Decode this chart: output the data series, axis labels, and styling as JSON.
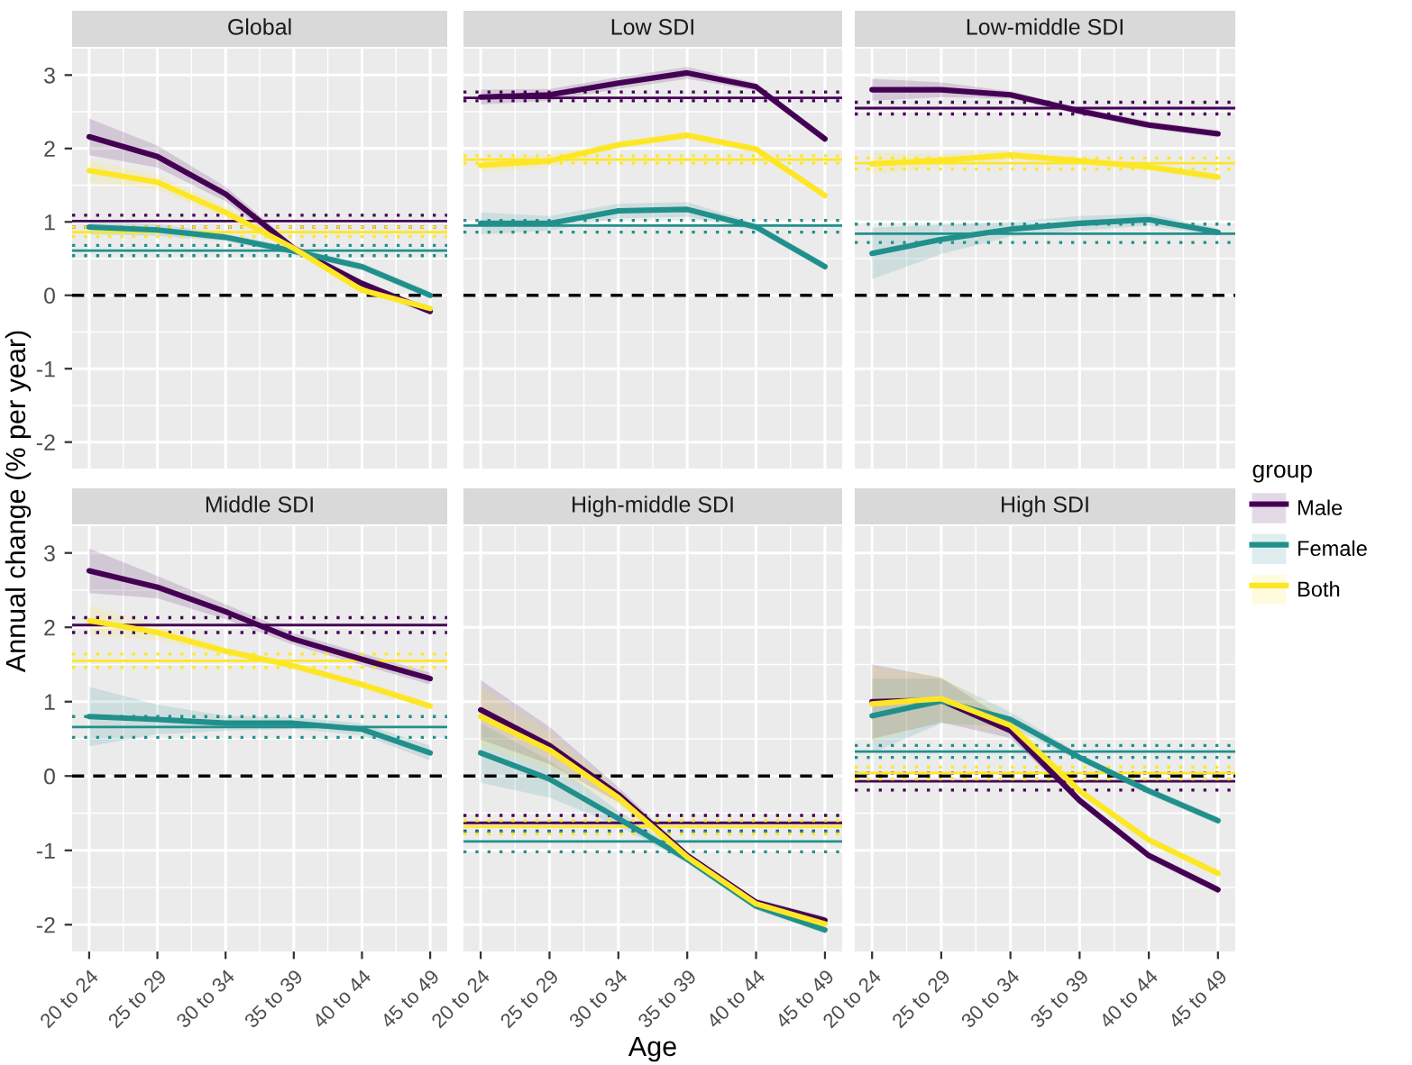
{
  "chart_data": [
    {
      "type": "line",
      "title": "Global",
      "ylabel": "Annual change (% per year)",
      "legend": "right",
      "legend_title": "group",
      "grid": true,
      "tick_labels": "y",
      "categories": [
        "20 to 24",
        "25 to 29",
        "30 to 34",
        "35 to 39",
        "40 to 44",
        "45 to 49"
      ],
      "ylim": [
        -2.36,
        3.36
      ],
      "yticks": [
        -2,
        -1,
        0,
        1,
        2,
        3
      ],
      "series": [
        {
          "name": "Male",
          "color": "#440154",
          "values": [
            2.16,
            1.89,
            1.38,
            0.64,
            0.16,
            -0.22
          ],
          "lower": [
            1.91,
            1.74,
            1.28,
            0.59,
            0.11,
            -0.27
          ],
          "upper": [
            2.41,
            2.04,
            1.48,
            0.69,
            0.21,
            -0.17
          ]
        },
        {
          "name": "Female",
          "color": "#21908c",
          "values": [
            0.93,
            0.89,
            0.79,
            0.6,
            0.39,
            0.0
          ],
          "lower": [
            0.83,
            0.81,
            0.74,
            0.55,
            0.34,
            -0.05
          ],
          "upper": [
            1.03,
            0.97,
            0.84,
            0.65,
            0.44,
            0.05
          ]
        },
        {
          "name": "Both",
          "color": "#fde725",
          "values": [
            1.7,
            1.54,
            1.13,
            0.64,
            0.07,
            -0.18
          ],
          "lower": [
            1.55,
            1.44,
            1.05,
            0.59,
            0.02,
            -0.23
          ],
          "upper": [
            1.85,
            1.64,
            1.21,
            0.69,
            0.12,
            -0.13
          ]
        }
      ],
      "ref_lines": [
        {
          "axis": "y",
          "value": 0,
          "color": "#000000",
          "line_style": "dashed"
        },
        {
          "axis": "y",
          "value": 1.01,
          "color": "#440154",
          "line_style": "solid"
        },
        {
          "axis": "y",
          "value": 1.09,
          "color": "#440154",
          "line_style": "dotted"
        },
        {
          "axis": "y",
          "value": 0.93,
          "color": "#440154",
          "line_style": "dotted"
        },
        {
          "axis": "y",
          "value": 0.61,
          "color": "#21908c",
          "line_style": "solid"
        },
        {
          "axis": "y",
          "value": 0.68,
          "color": "#21908c",
          "line_style": "dotted"
        },
        {
          "axis": "y",
          "value": 0.54,
          "color": "#21908c",
          "line_style": "dotted"
        },
        {
          "axis": "y",
          "value": 0.86,
          "color": "#fde725",
          "line_style": "solid"
        },
        {
          "axis": "y",
          "value": 0.93,
          "color": "#fde725",
          "line_style": "dotted"
        },
        {
          "axis": "y",
          "value": 0.8,
          "color": "#fde725",
          "line_style": "dotted"
        }
      ]
    },
    {
      "type": "line",
      "title": "Low SDI",
      "grid": true,
      "tick_labels": false,
      "categories": [
        "20 to 24",
        "25 to 29",
        "30 to 34",
        "35 to 39",
        "40 to 44",
        "45 to 49"
      ],
      "ylim": [
        -2.36,
        3.36
      ],
      "yticks": [
        -2,
        -1,
        0,
        1,
        2,
        3
      ],
      "series": [
        {
          "name": "Male",
          "color": "#440154",
          "values": [
            2.7,
            2.73,
            2.89,
            3.03,
            2.84,
            2.13
          ],
          "lower": [
            2.6,
            2.65,
            2.81,
            2.95,
            2.79,
            2.08
          ],
          "upper": [
            2.8,
            2.81,
            2.97,
            3.11,
            2.89,
            2.18
          ]
        },
        {
          "name": "Female",
          "color": "#21908c",
          "values": [
            0.98,
            0.98,
            1.15,
            1.17,
            0.93,
            0.39
          ],
          "lower": [
            0.83,
            0.88,
            1.05,
            1.07,
            0.88,
            0.34
          ],
          "upper": [
            1.13,
            1.08,
            1.25,
            1.27,
            0.98,
            0.44
          ]
        },
        {
          "name": "Both",
          "color": "#fde725",
          "values": [
            1.77,
            1.83,
            2.05,
            2.18,
            1.99,
            1.36
          ],
          "lower": [
            1.67,
            1.75,
            2.0,
            2.13,
            1.94,
            1.31
          ],
          "upper": [
            1.87,
            1.91,
            2.1,
            2.23,
            2.04,
            1.41
          ]
        }
      ],
      "ref_lines": [
        {
          "axis": "y",
          "value": 0,
          "color": "#000000",
          "line_style": "dashed"
        },
        {
          "axis": "y",
          "value": 2.69,
          "color": "#440154",
          "line_style": "solid"
        },
        {
          "axis": "y",
          "value": 2.77,
          "color": "#440154",
          "line_style": "dotted"
        },
        {
          "axis": "y",
          "value": 2.65,
          "color": "#440154",
          "line_style": "dotted"
        },
        {
          "axis": "y",
          "value": 0.95,
          "color": "#21908c",
          "line_style": "solid"
        },
        {
          "axis": "y",
          "value": 1.02,
          "color": "#21908c",
          "line_style": "dotted"
        },
        {
          "axis": "y",
          "value": 0.86,
          "color": "#21908c",
          "line_style": "dotted"
        },
        {
          "axis": "y",
          "value": 1.85,
          "color": "#fde725",
          "line_style": "solid"
        },
        {
          "axis": "y",
          "value": 1.9,
          "color": "#fde725",
          "line_style": "dotted"
        },
        {
          "axis": "y",
          "value": 1.8,
          "color": "#fde725",
          "line_style": "dotted"
        }
      ]
    },
    {
      "type": "line",
      "title": "Low-middle SDI",
      "grid": true,
      "tick_labels": false,
      "categories": [
        "20 to 24",
        "25 to 29",
        "30 to 34",
        "35 to 39",
        "40 to 44",
        "45 to 49"
      ],
      "ylim": [
        -2.36,
        3.36
      ],
      "yticks": [
        -2,
        -1,
        0,
        1,
        2,
        3
      ],
      "series": [
        {
          "name": "Male",
          "color": "#440154",
          "values": [
            2.8,
            2.8,
            2.73,
            2.51,
            2.32,
            2.2
          ],
          "lower": [
            2.65,
            2.7,
            2.68,
            2.46,
            2.27,
            2.15
          ],
          "upper": [
            2.95,
            2.9,
            2.78,
            2.56,
            2.37,
            2.25
          ]
        },
        {
          "name": "Female",
          "color": "#21908c",
          "values": [
            0.57,
            0.76,
            0.9,
            0.98,
            1.03,
            0.86
          ],
          "lower": [
            0.22,
            0.56,
            0.8,
            0.88,
            0.95,
            0.81
          ],
          "upper": [
            0.92,
            0.96,
            1.0,
            1.08,
            1.11,
            0.91
          ]
        },
        {
          "name": "Both",
          "color": "#fde725",
          "values": [
            1.79,
            1.84,
            1.91,
            1.83,
            1.75,
            1.61
          ],
          "lower": [
            1.64,
            1.76,
            1.86,
            1.78,
            1.7,
            1.56
          ],
          "upper": [
            1.94,
            1.92,
            1.96,
            1.88,
            1.8,
            1.66
          ]
        }
      ],
      "ref_lines": [
        {
          "axis": "y",
          "value": 0,
          "color": "#000000",
          "line_style": "dashed"
        },
        {
          "axis": "y",
          "value": 2.55,
          "color": "#440154",
          "line_style": "solid"
        },
        {
          "axis": "y",
          "value": 2.63,
          "color": "#440154",
          "line_style": "dotted"
        },
        {
          "axis": "y",
          "value": 2.47,
          "color": "#440154",
          "line_style": "dotted"
        },
        {
          "axis": "y",
          "value": 0.84,
          "color": "#21908c",
          "line_style": "solid"
        },
        {
          "axis": "y",
          "value": 0.97,
          "color": "#21908c",
          "line_style": "dotted"
        },
        {
          "axis": "y",
          "value": 0.72,
          "color": "#21908c",
          "line_style": "dotted"
        },
        {
          "axis": "y",
          "value": 1.8,
          "color": "#fde725",
          "line_style": "solid"
        },
        {
          "axis": "y",
          "value": 1.87,
          "color": "#fde725",
          "line_style": "dotted"
        },
        {
          "axis": "y",
          "value": 1.72,
          "color": "#fde725",
          "line_style": "dotted"
        }
      ]
    },
    {
      "type": "line",
      "title": "Middle SDI",
      "grid": true,
      "categories": [
        "20 to 24",
        "25 to 29",
        "30 to 34",
        "35 to 39",
        "40 to 44",
        "45 to 49"
      ],
      "ylim": [
        -2.36,
        3.36
      ],
      "yticks": [
        -2,
        -1,
        0,
        1,
        2,
        3
      ],
      "series": [
        {
          "name": "Male",
          "color": "#440154",
          "values": [
            2.76,
            2.54,
            2.21,
            1.84,
            1.57,
            1.31
          ],
          "lower": [
            2.46,
            2.39,
            2.11,
            1.76,
            1.49,
            1.23
          ],
          "upper": [
            3.06,
            2.69,
            2.31,
            1.92,
            1.65,
            1.39
          ]
        },
        {
          "name": "Female",
          "color": "#21908c",
          "values": [
            0.8,
            0.76,
            0.71,
            0.71,
            0.63,
            0.31
          ],
          "lower": [
            0.4,
            0.56,
            0.61,
            0.63,
            0.55,
            0.21
          ],
          "upper": [
            1.2,
            0.96,
            0.81,
            0.79,
            0.71,
            0.41
          ]
        },
        {
          "name": "Both",
          "color": "#fde725",
          "values": [
            2.09,
            1.93,
            1.68,
            1.48,
            1.23,
            0.94
          ],
          "lower": [
            1.89,
            1.83,
            1.63,
            1.43,
            1.18,
            0.89
          ],
          "upper": [
            2.29,
            2.03,
            1.73,
            1.53,
            1.28,
            0.99
          ]
        }
      ],
      "ref_lines": [
        {
          "axis": "y",
          "value": 0,
          "color": "#000000",
          "line_style": "dashed"
        },
        {
          "axis": "y",
          "value": 2.03,
          "color": "#440154",
          "line_style": "solid"
        },
        {
          "axis": "y",
          "value": 2.13,
          "color": "#440154",
          "line_style": "dotted"
        },
        {
          "axis": "y",
          "value": 1.93,
          "color": "#440154",
          "line_style": "dotted"
        },
        {
          "axis": "y",
          "value": 0.66,
          "color": "#21908c",
          "line_style": "solid"
        },
        {
          "axis": "y",
          "value": 0.8,
          "color": "#21908c",
          "line_style": "dotted"
        },
        {
          "axis": "y",
          "value": 0.52,
          "color": "#21908c",
          "line_style": "dotted"
        },
        {
          "axis": "y",
          "value": 1.55,
          "color": "#fde725",
          "line_style": "solid"
        },
        {
          "axis": "y",
          "value": 1.64,
          "color": "#fde725",
          "line_style": "dotted"
        },
        {
          "axis": "y",
          "value": 1.46,
          "color": "#fde725",
          "line_style": "dotted"
        }
      ]
    },
    {
      "type": "line",
      "title": "High-middle SDI",
      "xlabel": "Age",
      "grid": true,
      "tick_labels": "x",
      "categories": [
        "20 to 24",
        "25 to 29",
        "30 to 34",
        "35 to 39",
        "40 to 44",
        "45 to 49"
      ],
      "ylim": [
        -2.36,
        3.36
      ],
      "yticks": [
        -2,
        -1,
        0,
        1,
        2,
        3
      ],
      "series": [
        {
          "name": "Male",
          "color": "#440154",
          "values": [
            0.89,
            0.41,
            -0.25,
            -1.07,
            -1.7,
            -1.94
          ],
          "lower": [
            0.49,
            0.16,
            -0.35,
            -1.12,
            -1.75,
            -1.99
          ],
          "upper": [
            1.29,
            0.66,
            -0.15,
            -1.02,
            -1.65,
            -1.89
          ]
        },
        {
          "name": "Female",
          "color": "#21908c",
          "values": [
            0.31,
            -0.04,
            -0.57,
            -1.12,
            -1.75,
            -2.07
          ],
          "lower": [
            -0.09,
            -0.29,
            -0.67,
            -1.17,
            -1.8,
            -2.12
          ],
          "upper": [
            0.71,
            0.21,
            -0.47,
            -1.07,
            -1.7,
            -2.02
          ]
        },
        {
          "name": "Both",
          "color": "#fde725",
          "values": [
            0.8,
            0.35,
            -0.29,
            -1.09,
            -1.72,
            -1.99
          ],
          "lower": [
            0.4,
            0.1,
            -0.39,
            -1.14,
            -1.77,
            -2.04
          ],
          "upper": [
            1.2,
            0.6,
            -0.19,
            -1.04,
            -1.67,
            -1.94
          ]
        }
      ],
      "ref_lines": [
        {
          "axis": "y",
          "value": 0,
          "color": "#000000",
          "line_style": "dashed"
        },
        {
          "axis": "y",
          "value": -0.63,
          "color": "#440154",
          "line_style": "solid"
        },
        {
          "axis": "y",
          "value": -0.53,
          "color": "#440154",
          "line_style": "dotted"
        },
        {
          "axis": "y",
          "value": -0.74,
          "color": "#440154",
          "line_style": "dotted"
        },
        {
          "axis": "y",
          "value": -0.88,
          "color": "#21908c",
          "line_style": "solid"
        },
        {
          "axis": "y",
          "value": -0.75,
          "color": "#21908c",
          "line_style": "dotted"
        },
        {
          "axis": "y",
          "value": -1.02,
          "color": "#21908c",
          "line_style": "dotted"
        },
        {
          "axis": "y",
          "value": -0.68,
          "color": "#fde725",
          "line_style": "solid"
        },
        {
          "axis": "y",
          "value": -0.6,
          "color": "#fde725",
          "line_style": "dotted"
        },
        {
          "axis": "y",
          "value": -0.78,
          "color": "#fde725",
          "line_style": "dotted"
        }
      ]
    },
    {
      "type": "line",
      "title": "High SDI",
      "grid": true,
      "tick_labels": "x",
      "categories": [
        "20 to 24",
        "25 to 29",
        "30 to 34",
        "35 to 39",
        "40 to 44",
        "45 to 49"
      ],
      "ylim": [
        -2.36,
        3.36
      ],
      "yticks": [
        -2,
        -1,
        0,
        1,
        2,
        3
      ],
      "series": [
        {
          "name": "Male",
          "color": "#440154",
          "values": [
            1.0,
            1.02,
            0.61,
            -0.33,
            -1.07,
            -1.53
          ],
          "lower": [
            0.5,
            0.72,
            0.51,
            -0.38,
            -1.12,
            -1.58
          ],
          "upper": [
            1.5,
            1.32,
            0.71,
            -0.28,
            -1.02,
            -1.48
          ]
        },
        {
          "name": "Female",
          "color": "#21908c",
          "values": [
            0.81,
            1.01,
            0.76,
            0.25,
            -0.2,
            -0.6
          ],
          "lower": [
            0.31,
            0.71,
            0.66,
            0.2,
            -0.25,
            -0.65
          ],
          "upper": [
            1.31,
            1.31,
            0.86,
            0.3,
            -0.15,
            -0.55
          ]
        },
        {
          "name": "Both",
          "color": "#fde725",
          "values": [
            0.97,
            1.04,
            0.68,
            -0.2,
            -0.86,
            -1.31
          ],
          "lower": [
            0.47,
            0.74,
            0.58,
            -0.25,
            -0.91,
            -1.36
          ],
          "upper": [
            1.47,
            1.34,
            0.78,
            -0.15,
            -0.81,
            -1.26
          ]
        }
      ],
      "ref_lines": [
        {
          "axis": "y",
          "value": 0,
          "color": "#000000",
          "line_style": "dashed"
        },
        {
          "axis": "y",
          "value": -0.07,
          "color": "#440154",
          "line_style": "solid"
        },
        {
          "axis": "y",
          "value": 0.04,
          "color": "#440154",
          "line_style": "dotted"
        },
        {
          "axis": "y",
          "value": -0.19,
          "color": "#440154",
          "line_style": "dotted"
        },
        {
          "axis": "y",
          "value": 0.33,
          "color": "#21908c",
          "line_style": "solid"
        },
        {
          "axis": "y",
          "value": 0.41,
          "color": "#21908c",
          "line_style": "dotted"
        },
        {
          "axis": "y",
          "value": 0.25,
          "color": "#21908c",
          "line_style": "dotted"
        },
        {
          "axis": "y",
          "value": 0.04,
          "color": "#fde725",
          "line_style": "solid"
        },
        {
          "axis": "y",
          "value": 0.12,
          "color": "#fde725",
          "line_style": "dotted"
        },
        {
          "axis": "y",
          "value": -0.04,
          "color": "#fde725",
          "line_style": "dotted"
        }
      ]
    }
  ]
}
